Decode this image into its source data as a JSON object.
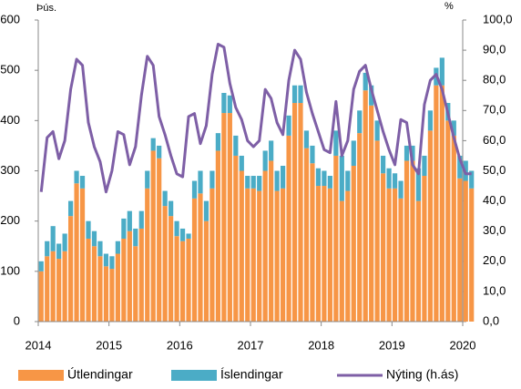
{
  "chart_data": {
    "type": "bar-line",
    "ylabel": "Þús.",
    "y2label": "%",
    "categories": [
      "2014",
      null,
      null,
      null,
      null,
      null,
      null,
      null,
      null,
      null,
      null,
      null,
      "2015",
      null,
      null,
      null,
      null,
      null,
      null,
      null,
      null,
      null,
      null,
      null,
      "2016",
      null,
      null,
      null,
      null,
      null,
      null,
      null,
      null,
      null,
      null,
      null,
      "2017",
      null,
      null,
      null,
      null,
      null,
      null,
      null,
      null,
      null,
      null,
      null,
      "2018",
      null,
      null,
      null,
      null,
      null,
      null,
      null,
      null,
      null,
      null,
      null,
      "2019",
      null,
      null,
      null,
      null,
      null,
      null,
      null,
      null,
      null,
      null,
      null,
      "2020",
      null
    ],
    "series": [
      {
        "name": "Útlendingar",
        "color": "#f79646",
        "kind": "bar",
        "values": [
          100,
          130,
          140,
          125,
          140,
          210,
          275,
          265,
          165,
          150,
          130,
          110,
          105,
          135,
          165,
          180,
          150,
          185,
          265,
          340,
          325,
          230,
          210,
          170,
          160,
          165,
          245,
          255,
          200,
          265,
          340,
          415,
          415,
          330,
          300,
          265,
          265,
          260,
          300,
          320,
          260,
          265,
          370,
          435,
          435,
          345,
          315,
          270,
          270,
          265,
          330,
          240,
          260,
          310,
          375,
          460,
          430,
          360,
          295,
          265,
          265,
          245,
          320,
          320,
          240,
          290,
          380,
          470,
          470,
          400,
          370,
          285,
          280,
          265
        ]
      },
      {
        "name": "Íslendingar",
        "color": "#4bacc6",
        "kind": "bar",
        "values": [
          20,
          30,
          50,
          30,
          35,
          30,
          25,
          25,
          35,
          30,
          30,
          25,
          25,
          25,
          40,
          40,
          35,
          35,
          35,
          25,
          25,
          30,
          30,
          30,
          25,
          10,
          35,
          45,
          40,
          35,
          35,
          40,
          35,
          40,
          30,
          25,
          25,
          30,
          40,
          40,
          40,
          45,
          40,
          35,
          35,
          35,
          35,
          35,
          30,
          25,
          50,
          90,
          40,
          50,
          45,
          35,
          40,
          40,
          35,
          40,
          30,
          35,
          30,
          30,
          65,
          40,
          40,
          35,
          55,
          35,
          30,
          45,
          40,
          35
        ]
      },
      {
        "name": "Nýting  (h.ás)",
        "color": "#7e5fa6",
        "kind": "line",
        "axis": "y2",
        "values": [
          43,
          61,
          63,
          54,
          60,
          77,
          87,
          85,
          66,
          58,
          53,
          43,
          50,
          63,
          62,
          52,
          58,
          75,
          88,
          85,
          68,
          62,
          55,
          49,
          48,
          68,
          69,
          59,
          65,
          82,
          92,
          91,
          79,
          71,
          67,
          60,
          58,
          60,
          77,
          74,
          66,
          62,
          80,
          90,
          87,
          76,
          69,
          63,
          57,
          56,
          73,
          55,
          60,
          77,
          83,
          85,
          77,
          70,
          63,
          57,
          52,
          67,
          66,
          52,
          49,
          72,
          80,
          82,
          77,
          69,
          61,
          54,
          49,
          49
        ]
      }
    ],
    "ylim": [
      0,
      600
    ],
    "yticks": [
      0,
      100,
      200,
      300,
      400,
      500,
      600
    ],
    "y2lim": [
      0,
      100
    ],
    "y2ticks": [
      {
        "value": 0,
        "label": "0,0"
      },
      {
        "value": 10,
        "label": "10,0"
      },
      {
        "value": 20,
        "label": "20,0"
      },
      {
        "value": 30,
        "label": "30,0"
      },
      {
        "value": 40,
        "label": "40,0"
      },
      {
        "value": 50,
        "label": "50,0"
      },
      {
        "value": 60,
        "label": "60,0"
      },
      {
        "value": 70,
        "label": "70,0"
      },
      {
        "value": 80,
        "label": "80,0"
      },
      {
        "value": 90,
        "label": "90,0"
      },
      {
        "value": 100,
        "label": "100,0"
      }
    ]
  }
}
